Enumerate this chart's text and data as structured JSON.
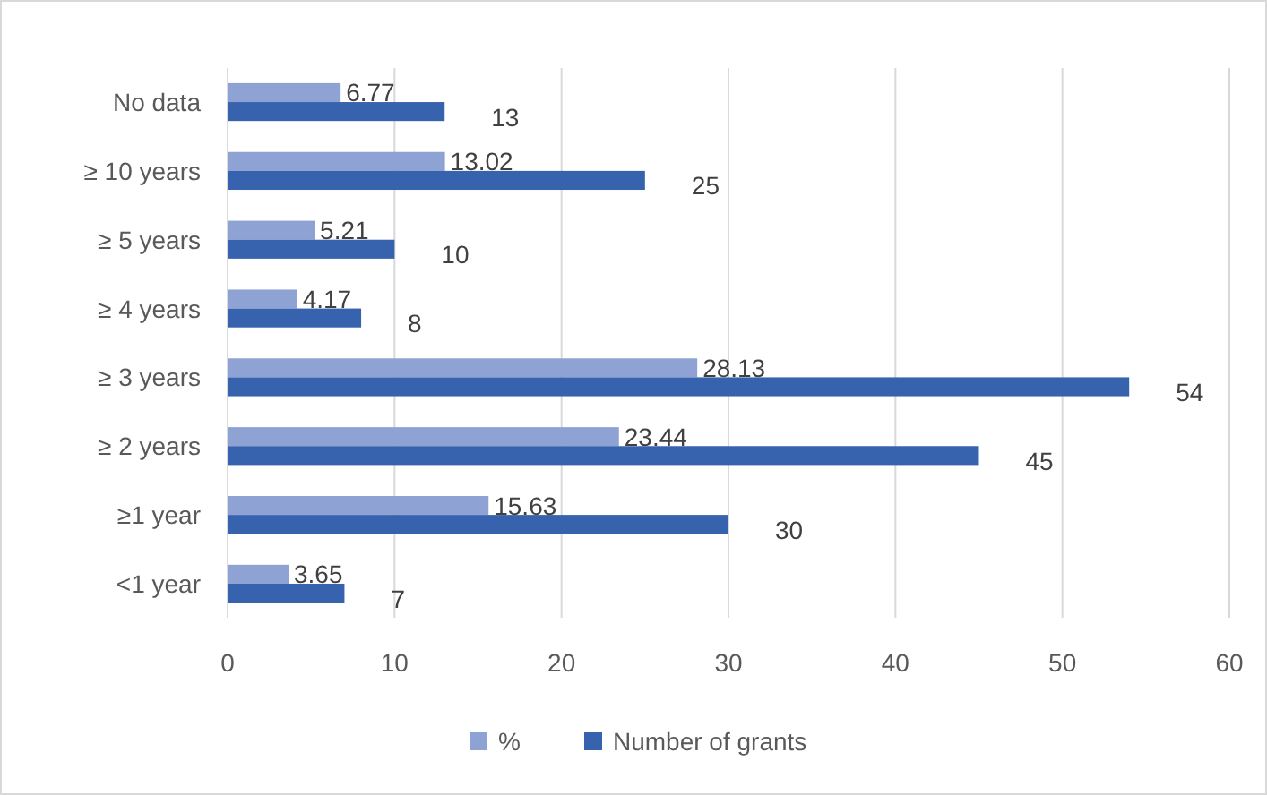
{
  "chart_data": {
    "type": "bar",
    "orientation": "horizontal",
    "categories": [
      "No data",
      "≥ 10 years",
      "≥ 5 years",
      "≥ 4 years",
      "≥ 3 years",
      "≥ 2 years",
      "≥1 year",
      "<1 year"
    ],
    "series": [
      {
        "name": "%",
        "color": "#8fa2d4",
        "values": [
          6.77,
          13.02,
          5.21,
          4.17,
          28.13,
          23.44,
          15.63,
          3.65
        ]
      },
      {
        "name": "Number of grants",
        "color": "#3762ad",
        "values": [
          13,
          25,
          10,
          8,
          54,
          45,
          30,
          7
        ]
      }
    ],
    "xlim": [
      0,
      60
    ],
    "xticks": [
      0,
      10,
      20,
      30,
      40,
      50,
      60
    ],
    "grid": "x",
    "legend": "bottom",
    "data_labels": true
  }
}
